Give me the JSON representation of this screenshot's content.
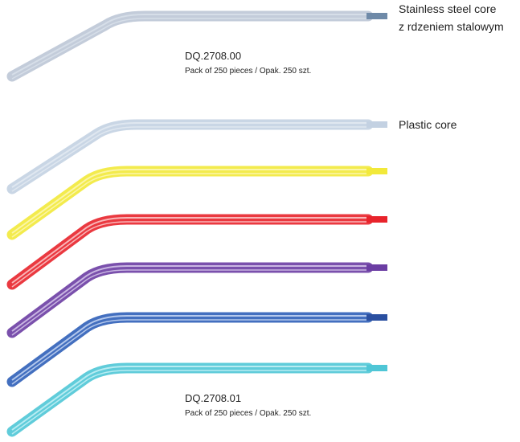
{
  "steel_core_label": {
    "line1": "Stainless steel core",
    "line2": "z rdzeniem stalowym"
  },
  "plastic_core_label": "Plastic core",
  "products": [
    {
      "code": "DQ.2708.00",
      "pack": "Pack of 250 pieces / Opak. 250 szt."
    },
    {
      "code": "DQ.2708.01",
      "pack": "Pack of 250 pieces / Opak. 250 szt."
    }
  ]
}
